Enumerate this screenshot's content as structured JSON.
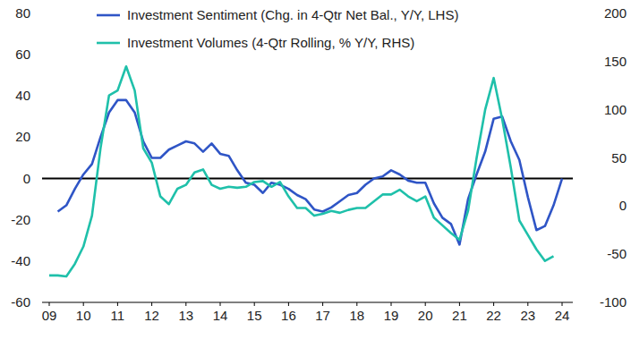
{
  "chart_data": {
    "type": "line",
    "x": [
      2009.0,
      2009.25,
      2009.5,
      2009.75,
      2010.0,
      2010.25,
      2010.5,
      2010.75,
      2011.0,
      2011.25,
      2011.5,
      2011.75,
      2012.0,
      2012.25,
      2012.5,
      2012.75,
      2013.0,
      2013.25,
      2013.5,
      2013.75,
      2014.0,
      2014.25,
      2014.5,
      2014.75,
      2015.0,
      2015.25,
      2015.5,
      2015.75,
      2016.0,
      2016.25,
      2016.5,
      2016.75,
      2017.0,
      2017.25,
      2017.5,
      2017.75,
      2018.0,
      2018.25,
      2018.5,
      2018.75,
      2019.0,
      2019.25,
      2019.5,
      2019.75,
      2020.0,
      2020.25,
      2020.5,
      2020.75,
      2021.0,
      2021.25,
      2021.5,
      2021.75,
      2022.0,
      2022.25,
      2022.5,
      2022.75,
      2023.0,
      2023.25,
      2023.5,
      2023.75,
      2024.0
    ],
    "series": [
      {
        "name": "Investment Sentiment (Chg. in 4-Qtr Net Bal., Y/Y, LHS)",
        "color": "#2f55c6",
        "values": [
          null,
          -16,
          -13,
          -5,
          2,
          7,
          20,
          32,
          38,
          38,
          32,
          18,
          10,
          10,
          14,
          16,
          18,
          17,
          13,
          17,
          12,
          11,
          4,
          -2,
          -3,
          -7,
          -2,
          -3,
          -5,
          -8,
          -10,
          -15,
          -16,
          -14,
          -11,
          -8,
          -7,
          -3,
          0,
          1,
          4,
          2,
          -1,
          -2,
          -2,
          -12,
          -19,
          -22,
          -32,
          -10,
          2,
          13,
          29,
          30,
          18,
          9,
          -9,
          -25,
          -23,
          -13,
          0
        ]
      },
      {
        "name": "Investment Volumes (4-Qtr Rolling, % Y/Y, RHS)",
        "color": "#1fc0aa",
        "axis": "y2",
        "values": [
          -72,
          -72,
          -73,
          -60,
          -42,
          -10,
          60,
          115,
          120,
          145,
          120,
          60,
          45,
          10,
          2,
          18,
          22,
          35,
          38,
          22,
          18,
          20,
          19,
          20,
          25,
          26,
          20,
          25,
          10,
          -2,
          -2,
          -10,
          -8,
          -5,
          -7,
          -4,
          -2,
          -2,
          5,
          12,
          12,
          17,
          10,
          5,
          10,
          -12,
          -20,
          -28,
          -35,
          -5,
          50,
          100,
          133,
          90,
          40,
          -15,
          -30,
          -45,
          -57,
          -52,
          null
        ]
      }
    ],
    "xlim": [
      2009,
      2024
    ],
    "xticks": [
      {
        "value": 2009,
        "label": "09"
      },
      {
        "value": 2010,
        "label": "10"
      },
      {
        "value": 2011,
        "label": "11"
      },
      {
        "value": 2012,
        "label": "12"
      },
      {
        "value": 2013,
        "label": "13"
      },
      {
        "value": 2014,
        "label": "14"
      },
      {
        "value": 2015,
        "label": "15"
      },
      {
        "value": 2016,
        "label": "16"
      },
      {
        "value": 2017,
        "label": "17"
      },
      {
        "value": 2018,
        "label": "18"
      },
      {
        "value": 2019,
        "label": "19"
      },
      {
        "value": 2020,
        "label": "20"
      },
      {
        "value": 2021,
        "label": "21"
      },
      {
        "value": 2022,
        "label": "22"
      },
      {
        "value": 2023,
        "label": "23"
      },
      {
        "value": 2024,
        "label": "24"
      }
    ],
    "ylim": [
      -60,
      80
    ],
    "yticks": [
      -60,
      -40,
      -20,
      0,
      20,
      40,
      60,
      80
    ],
    "y2lim": [
      -100,
      200
    ],
    "y2ticks": [
      -100,
      -50,
      0,
      50,
      100,
      150,
      200
    ],
    "grid": false,
    "legend": "upper-left"
  }
}
